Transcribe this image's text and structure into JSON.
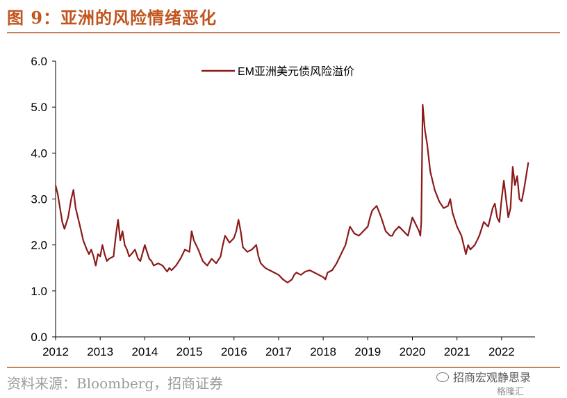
{
  "figure": {
    "title": "图 9：亚洲的风险情绪恶化",
    "source": "资料来源：Bloomberg，招商证券",
    "watermark": "招商宏观静思录",
    "watermark2": "格隆汇"
  },
  "chart_data": {
    "type": "line",
    "title": "",
    "xlabel": "",
    "ylabel": "",
    "ylim": [
      0.0,
      6.0
    ],
    "yticks": [
      "0.0",
      "1.0",
      "2.0",
      "3.0",
      "4.0",
      "5.0",
      "6.0"
    ],
    "xlim": [
      2012.0,
      2022.75
    ],
    "xticks": [
      "2012",
      "2013",
      "2014",
      "2015",
      "2016",
      "2017",
      "2018",
      "2019",
      "2020",
      "2021",
      "2022"
    ],
    "grid": false,
    "legend_position": "top",
    "series": [
      {
        "name": "EM亚洲美元债风险溢价",
        "color": "#8b1a1a",
        "x": [
          2012.0,
          2012.05,
          2012.1,
          2012.15,
          2012.2,
          2012.28,
          2012.35,
          2012.4,
          2012.45,
          2012.5,
          2012.55,
          2012.62,
          2012.7,
          2012.75,
          2012.8,
          2012.85,
          2012.9,
          2012.95,
          2013.0,
          2013.05,
          2013.1,
          2013.15,
          2013.2,
          2013.3,
          2013.35,
          2013.4,
          2013.45,
          2013.5,
          2013.55,
          2013.6,
          2013.65,
          2013.7,
          2013.78,
          2013.85,
          2013.9,
          2014.0,
          2014.05,
          2014.1,
          2014.15,
          2014.2,
          2014.3,
          2014.4,
          2014.5,
          2014.55,
          2014.6,
          2014.7,
          2014.8,
          2014.9,
          2015.0,
          2015.05,
          2015.1,
          2015.2,
          2015.3,
          2015.4,
          2015.5,
          2015.6,
          2015.7,
          2015.75,
          2015.8,
          2015.9,
          2016.0,
          2016.05,
          2016.1,
          2016.15,
          2016.2,
          2016.3,
          2016.4,
          2016.5,
          2016.55,
          2016.6,
          2016.7,
          2016.8,
          2016.9,
          2017.0,
          2017.1,
          2017.2,
          2017.3,
          2017.35,
          2017.4,
          2017.5,
          2017.6,
          2017.7,
          2017.8,
          2017.9,
          2018.0,
          2018.05,
          2018.1,
          2018.2,
          2018.3,
          2018.4,
          2018.5,
          2018.55,
          2018.6,
          2018.7,
          2018.8,
          2018.9,
          2019.0,
          2019.05,
          2019.1,
          2019.2,
          2019.3,
          2019.4,
          2019.5,
          2019.55,
          2019.6,
          2019.7,
          2019.8,
          2019.9,
          2020.0,
          2020.05,
          2020.1,
          2020.15,
          2020.18,
          2020.2,
          2020.23,
          2020.28,
          2020.33,
          2020.4,
          2020.5,
          2020.6,
          2020.7,
          2020.8,
          2020.85,
          2020.9,
          2021.0,
          2021.1,
          2021.15,
          2021.2,
          2021.25,
          2021.3,
          2021.4,
          2021.5,
          2021.6,
          2021.7,
          2021.75,
          2021.8,
          2021.85,
          2021.9,
          2021.95,
          2022.0,
          2022.05,
          2022.1,
          2022.15,
          2022.2,
          2022.25,
          2022.3,
          2022.35,
          2022.4,
          2022.45,
          2022.5,
          2022.55,
          2022.6
        ],
        "y": [
          3.3,
          3.1,
          2.8,
          2.5,
          2.35,
          2.6,
          3.0,
          3.2,
          2.8,
          2.6,
          2.4,
          2.1,
          1.9,
          1.8,
          1.9,
          1.75,
          1.55,
          1.8,
          1.75,
          2.0,
          1.8,
          1.65,
          1.7,
          1.75,
          2.2,
          2.55,
          2.1,
          2.3,
          2.0,
          1.9,
          1.75,
          1.8,
          1.9,
          1.7,
          1.65,
          2.0,
          1.85,
          1.7,
          1.65,
          1.55,
          1.6,
          1.55,
          1.42,
          1.5,
          1.45,
          1.55,
          1.7,
          1.9,
          1.85,
          2.3,
          2.1,
          1.9,
          1.65,
          1.55,
          1.7,
          1.6,
          1.75,
          2.0,
          2.2,
          2.05,
          2.15,
          2.3,
          2.55,
          2.3,
          1.95,
          1.85,
          1.9,
          2.0,
          1.75,
          1.6,
          1.5,
          1.45,
          1.4,
          1.35,
          1.25,
          1.18,
          1.25,
          1.35,
          1.4,
          1.35,
          1.42,
          1.45,
          1.4,
          1.35,
          1.3,
          1.25,
          1.4,
          1.45,
          1.6,
          1.8,
          2.0,
          2.2,
          2.4,
          2.25,
          2.2,
          2.3,
          2.4,
          2.6,
          2.75,
          2.85,
          2.6,
          2.3,
          2.2,
          2.2,
          2.3,
          2.4,
          2.3,
          2.2,
          2.6,
          2.5,
          2.4,
          2.3,
          2.2,
          2.5,
          5.05,
          4.5,
          4.2,
          3.6,
          3.2,
          2.95,
          2.8,
          2.85,
          3.0,
          2.7,
          2.4,
          2.2,
          2.0,
          1.8,
          2.0,
          1.9,
          2.0,
          2.2,
          2.5,
          2.4,
          2.6,
          2.8,
          2.9,
          2.6,
          2.5,
          3.0,
          3.4,
          3.0,
          2.6,
          2.8,
          3.7,
          3.3,
          3.5,
          3.0,
          2.95,
          3.2,
          3.5,
          3.8
        ]
      }
    ]
  }
}
